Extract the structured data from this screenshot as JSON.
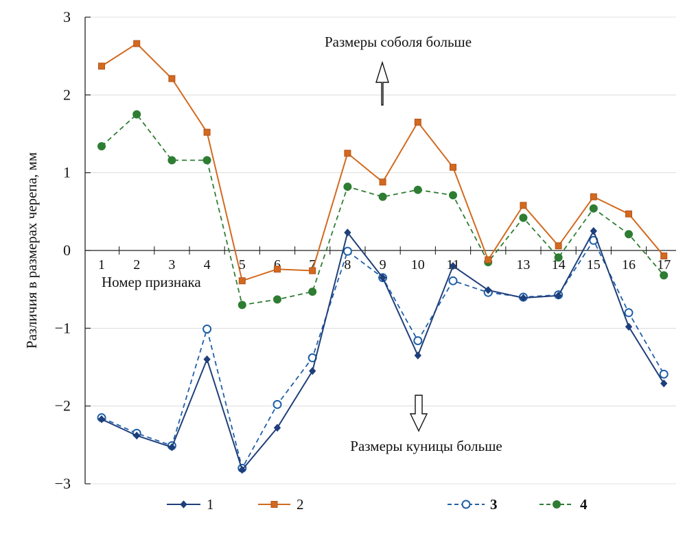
{
  "chart_data": {
    "type": "line",
    "ylabel": "Различия в размерах черепа, мм",
    "xlabel": "Номер признака",
    "ylim": [
      -3,
      3
    ],
    "yticks": [
      3,
      2,
      1,
      0,
      -1,
      -2,
      -3
    ],
    "ytick_labels": [
      "3",
      "2",
      "1",
      "0",
      "−1",
      "−2",
      "−3"
    ],
    "x": [
      1,
      2,
      3,
      4,
      5,
      6,
      7,
      8,
      9,
      10,
      11,
      12,
      13,
      14,
      15,
      16,
      17
    ],
    "x_tick_labels": [
      "1",
      "2",
      "3",
      "4",
      "5",
      "6",
      "7",
      "8",
      "9",
      "10",
      "11",
      "",
      "13",
      "14",
      "15",
      "16",
      "17"
    ],
    "annotations": {
      "top": "Размеры соболя больше",
      "bottom": "Размеры куницы больше"
    },
    "series": [
      {
        "name": "1",
        "color": "#1f3f7a",
        "line": "solid",
        "marker": "diamond",
        "values": [
          -2.17,
          -2.38,
          -2.53,
          -1.4,
          -2.82,
          -2.28,
          -1.55,
          0.23,
          -0.35,
          -1.35,
          -0.2,
          -0.51,
          -0.61,
          -0.58,
          0.25,
          -0.98,
          -1.71
        ]
      },
      {
        "name": "2",
        "color": "#d2691e",
        "line": "solid",
        "marker": "square",
        "values": [
          2.37,
          2.66,
          2.21,
          1.52,
          -0.39,
          -0.24,
          -0.26,
          1.25,
          0.88,
          1.65,
          1.07,
          -0.12,
          0.58,
          0.06,
          0.69,
          0.47,
          -0.07
        ]
      },
      {
        "name": "3",
        "color": "#1f5fa8",
        "line": "dashed",
        "marker": "open-circle",
        "values": [
          -2.15,
          -2.35,
          -2.51,
          -1.01,
          -2.8,
          -1.98,
          -1.38,
          -0.01,
          -0.35,
          -1.16,
          -0.39,
          -0.54,
          -0.6,
          -0.57,
          0.13,
          -0.8,
          -1.59
        ]
      },
      {
        "name": "4",
        "color": "#2e7d32",
        "line": "dashed",
        "marker": "filled-circle",
        "values": [
          1.34,
          1.75,
          1.16,
          1.16,
          -0.7,
          -0.63,
          -0.53,
          0.82,
          0.69,
          0.78,
          0.71,
          -0.15,
          0.42,
          -0.09,
          0.54,
          0.21,
          -0.32
        ]
      }
    ],
    "legend": [
      "1",
      "2",
      "3",
      "4"
    ]
  }
}
